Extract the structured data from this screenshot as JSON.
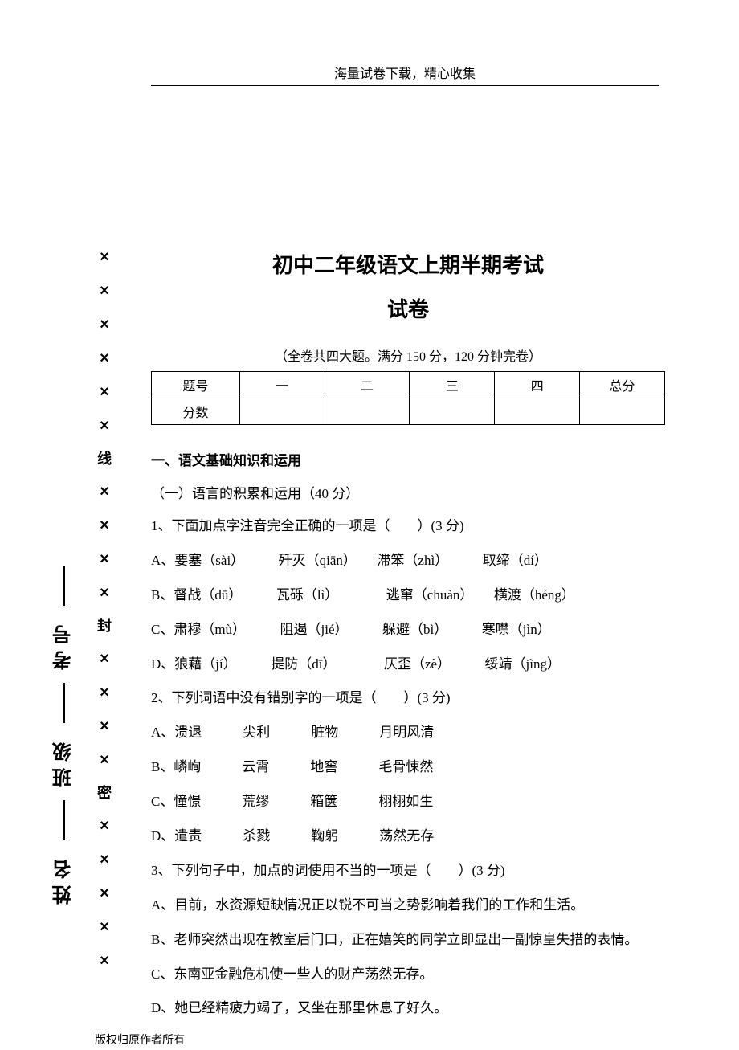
{
  "header": {
    "text": "海量试卷下载，精心收集"
  },
  "title": {
    "line1": "初中二年级语文上期半期考试",
    "line2": "试卷"
  },
  "exam_info": "（全卷共四大题。满分 150 分，120 分钟完卷）",
  "score_table": {
    "row1_label": "题号",
    "cols": [
      "一",
      "二",
      "三",
      "四",
      "总分"
    ],
    "row2_label": "分数"
  },
  "section1": {
    "heading": "一、语文基础知识和运用",
    "sub": "（一）语言的积累和运用（40 分）"
  },
  "q1": {
    "stem": "1、下面加点字注音完全正确的一项是（　　）(3 分)",
    "A": "A、要塞（sài）　　　歼灭（qiān）　　滞笨（zhì）　　　取缔（dí）",
    "B": "B、督战（dū）　　　瓦砾（lì）　　　　逃窜（chuàn）　　横渡（héng）",
    "C": "C、肃穆（mù）　　　阻遏（jié）　　　躲避（bì）　　　寒噤（jìn）",
    "D": "D、狼藉（jí）　　　提防（dī）　　　　仄歪（zè）　　　绥靖（jìng）"
  },
  "q2": {
    "stem": "2、下列词语中没有错别字的一项是（　　）(3 分)",
    "A": "A、溃退　　　尖利　　　脏物　　　月明风清",
    "B": "B、嶙峋　　　云霄　　　地窖　　　毛骨悚然",
    "C": "C、憧憬　　　荒缪　　　箱箧　　　栩栩如生",
    "D": "D、遣责　　　杀戮　　　鞠躬　　　荡然无存"
  },
  "q3": {
    "stem": "3、下列句子中，加点的词使用不当的一项是（　　）(3 分)",
    "A": "A、目前，水资源短缺情况正以锐不可当之势影响着我们的工作和生活。",
    "B": "B、老师突然出现在教室后门口，正在嬉笑的同学立即显出一副惊皇失措的表情。",
    "C": "C、东南亚金融危机使一些人的财产荡然无存。",
    "D": "D、她已经精疲力竭了，又坐在那里休息了好久。"
  },
  "copyright": "版权归原作者所有",
  "binding_chars": [
    "×",
    "×",
    "×",
    "×",
    "×",
    "×",
    "线",
    "×",
    "×",
    "×",
    "×",
    "封",
    "×",
    "×",
    "×",
    "×",
    "密",
    "×",
    "×",
    "×",
    "×",
    "×"
  ],
  "vert_labels": [
    "考号",
    "班级",
    "姓名"
  ],
  "colors": {
    "text": "#000000",
    "background": "#ffffff",
    "border": "#000000"
  }
}
